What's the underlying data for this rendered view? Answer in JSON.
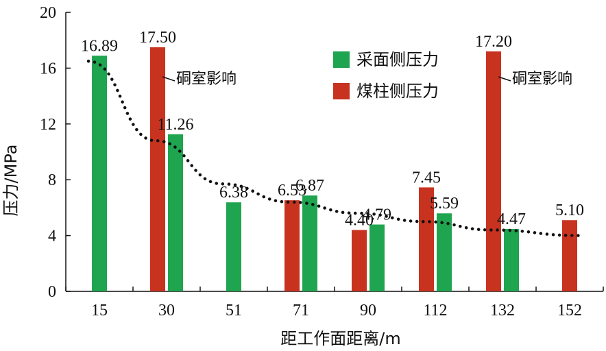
{
  "chart_data": {
    "type": "bar",
    "ylabel": "压力/MPa",
    "xlabel": "距工作面距离/m",
    "ylim": [
      0,
      20
    ],
    "yticks": [
      "0",
      "4",
      "8",
      "12",
      "16",
      "20"
    ],
    "categories": [
      "15",
      "30",
      "51",
      "71",
      "90",
      "112",
      "132",
      "152"
    ],
    "series": [
      {
        "name": "采面侧压力",
        "color": "#1fa44f",
        "values": [
          16.89,
          11.26,
          6.38,
          6.87,
          4.79,
          5.59,
          4.47,
          null
        ],
        "labels": [
          "16.89",
          "11.26",
          "6.38",
          "6.87",
          "4.79",
          "5.59",
          "4.47",
          ""
        ]
      },
      {
        "name": "煤柱侧压力",
        "color": "#c8331f",
        "values": [
          null,
          17.5,
          null,
          6.53,
          4.4,
          7.45,
          17.2,
          5.1
        ],
        "labels": [
          "",
          "17.50",
          "",
          "6.53",
          "4.40",
          "7.45",
          "17.20",
          "5.10"
        ]
      }
    ],
    "trendline": {
      "style": "dotted",
      "color": "#111111",
      "x": [
        15,
        30,
        51,
        71,
        90,
        112,
        132,
        152
      ],
      "y": [
        16.5,
        10.8,
        7.7,
        6.4,
        5.6,
        5.0,
        4.4,
        4.0
      ]
    },
    "annotations": [
      {
        "text": "硐室影响",
        "category": "30"
      },
      {
        "text": "硐室影响",
        "category": "132"
      }
    ],
    "legend_position": "top-right",
    "grid": false
  }
}
